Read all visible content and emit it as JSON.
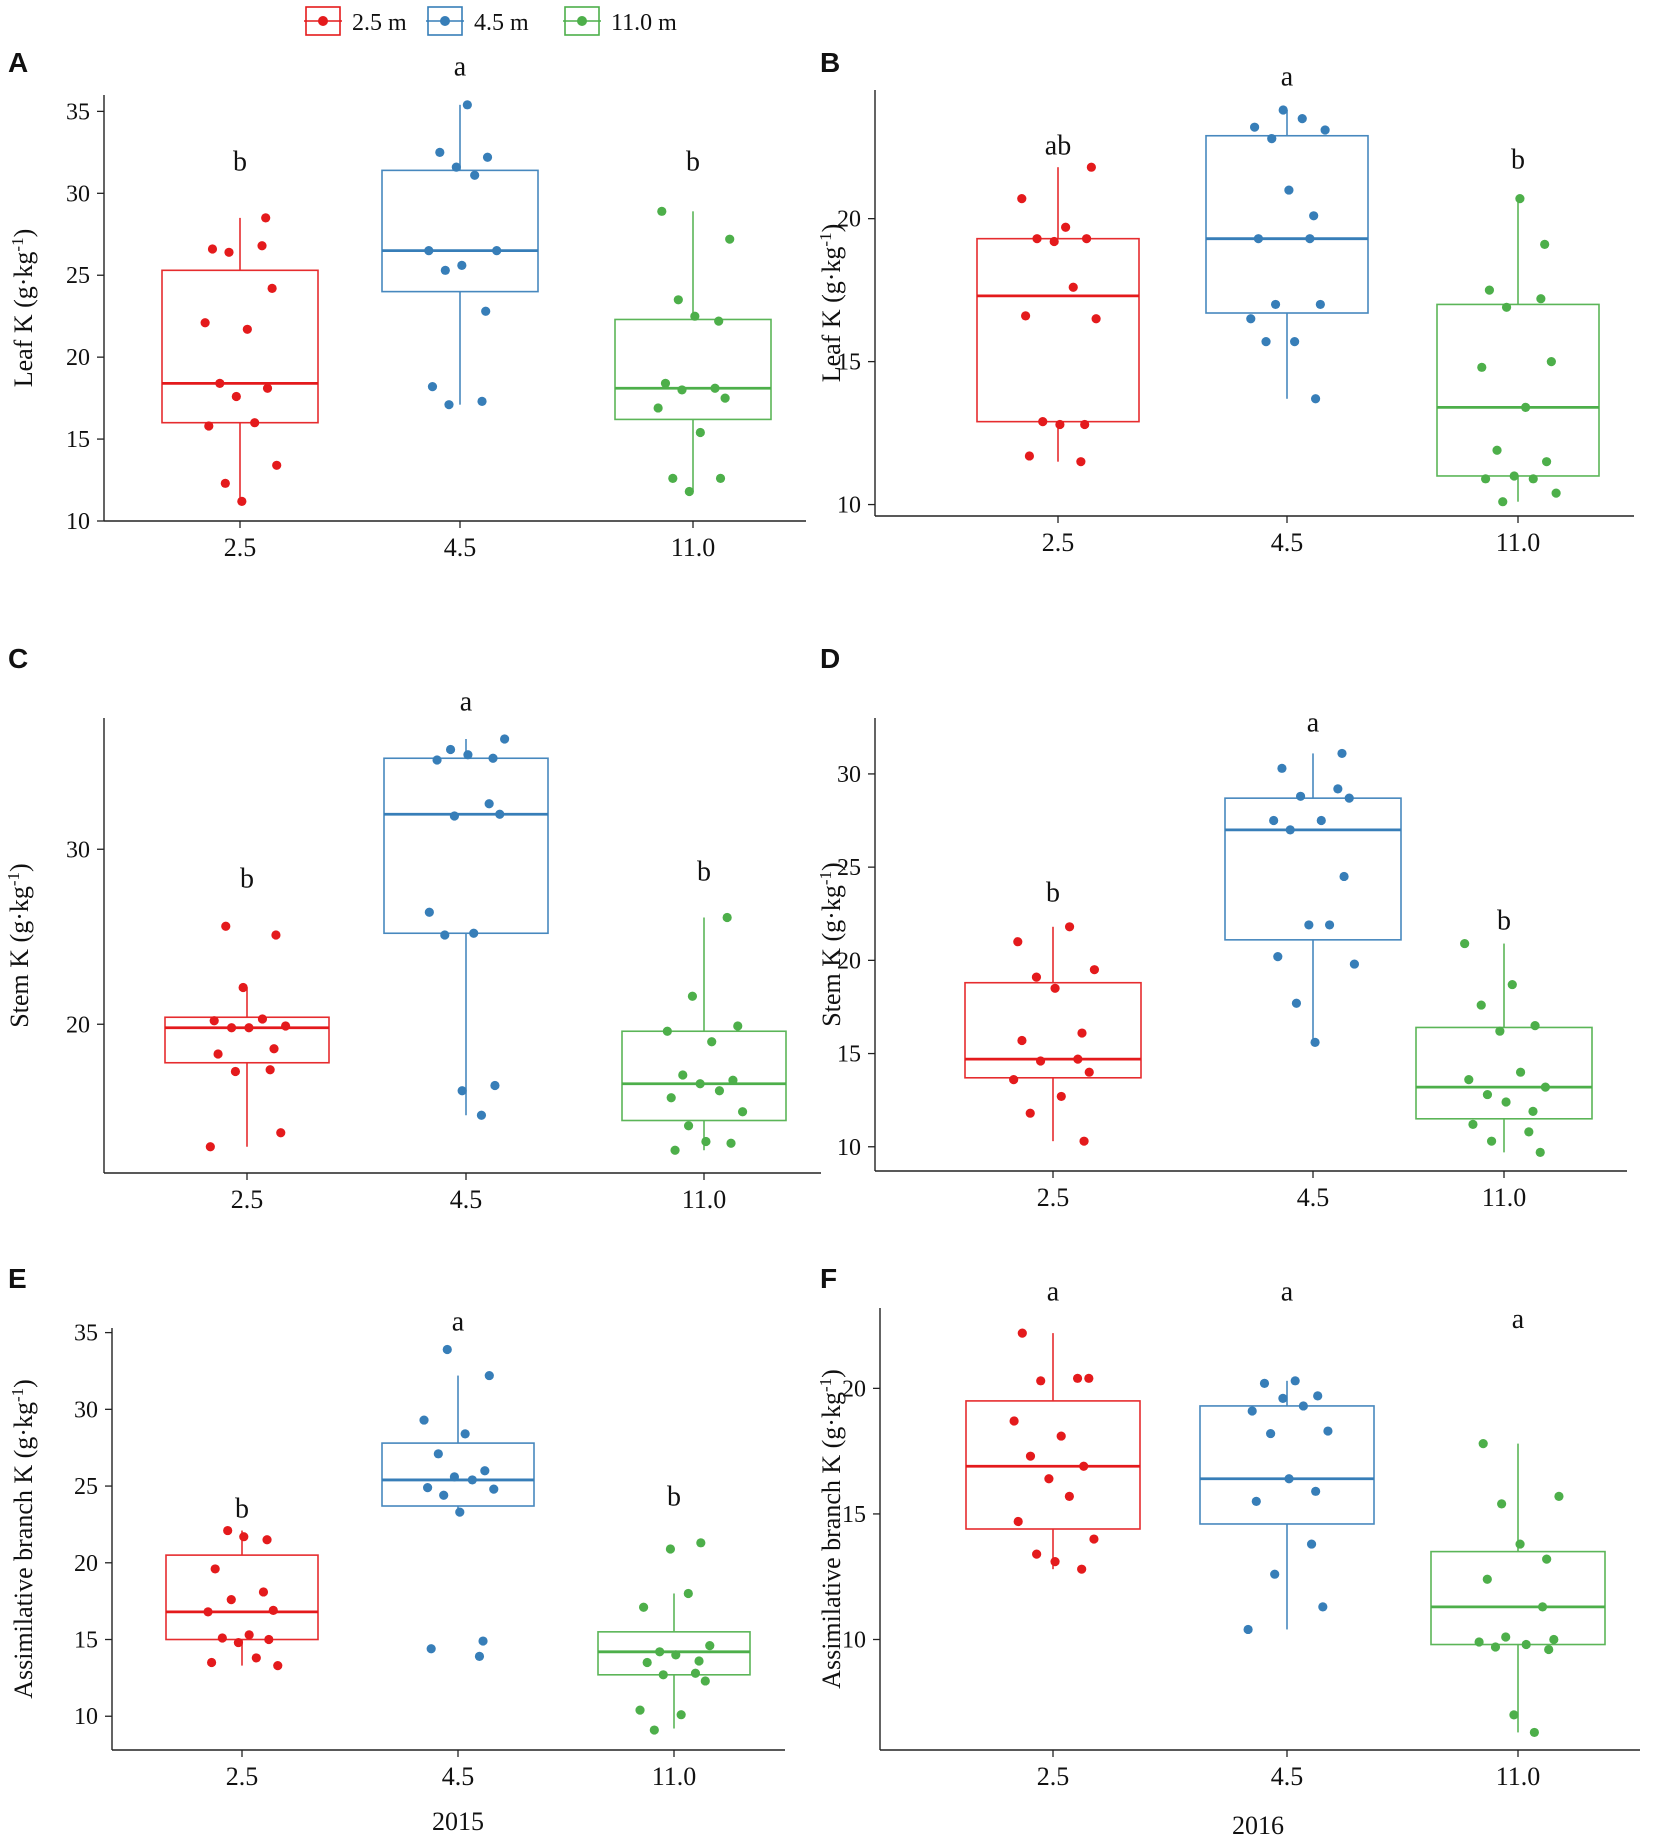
{
  "figure": {
    "legend": [
      {
        "label": "2.5 m",
        "color": "#e41a1c"
      },
      {
        "label": "4.5 m",
        "color": "#377eb8"
      },
      {
        "label": "11.0 m",
        "color": "#4daf4a"
      }
    ],
    "year_labels": {
      "left": "2015",
      "right": "2016"
    }
  },
  "chart_data": [
    {
      "type": "box",
      "panel": "A",
      "year": "2015",
      "ylabel": "Leaf K",
      "ylim": [
        10,
        36
      ],
      "yticks": [
        10,
        15,
        20,
        25,
        30,
        35
      ],
      "categories": [
        "2.5",
        "4.5",
        "11.0"
      ],
      "series": [
        {
          "name": "2.5 m",
          "color": "#e41a1c",
          "letter": "b",
          "letter_y": 32.0,
          "box": {
            "q1": 16.0,
            "median": 18.4,
            "q3": 25.3,
            "whisker_low": 11.2,
            "whisker_high": 28.5
          },
          "points": [
            26.6,
            26.8,
            26.4,
            24.2,
            22.1,
            21.7,
            18.4,
            18.1,
            17.6,
            16.0,
            15.8,
            13.4,
            12.3,
            11.2,
            28.5
          ]
        },
        {
          "name": "4.5 m",
          "color": "#377eb8",
          "letter": "a",
          "letter_y": 37.8,
          "box": {
            "q1": 24.0,
            "median": 26.5,
            "q3": 31.4,
            "whisker_low": 17.1,
            "whisker_high": 35.4
          },
          "points": [
            35.4,
            32.5,
            32.2,
            31.6,
            31.1,
            26.5,
            26.5,
            25.3,
            25.6,
            22.8,
            18.2,
            17.3,
            17.1
          ]
        },
        {
          "name": "11.0 m",
          "color": "#4daf4a",
          "letter": "b",
          "letter_y": 32.0,
          "box": {
            "q1": 16.2,
            "median": 18.1,
            "q3": 22.3,
            "whisker_low": 11.8,
            "whisker_high": 28.9
          },
          "points": [
            28.9,
            27.2,
            23.5,
            22.5,
            22.2,
            18.4,
            18.1,
            18.0,
            17.5,
            16.9,
            15.4,
            12.6,
            12.6,
            11.8
          ]
        }
      ]
    },
    {
      "type": "box",
      "panel": "B",
      "year": "2016",
      "ylabel": "Leaf K",
      "ylim": [
        9.6,
        24.5
      ],
      "yticks": [
        10,
        15,
        20
      ],
      "categories": [
        "2.5",
        "4.5",
        "11.0"
      ],
      "series": [
        {
          "name": "2.5 m",
          "color": "#e41a1c",
          "letter": "ab",
          "letter_y": 22.6,
          "box": {
            "q1": 12.9,
            "median": 17.3,
            "q3": 19.3,
            "whisker_low": 11.5,
            "whisker_high": 21.8
          },
          "points": [
            21.8,
            20.7,
            19.7,
            19.3,
            19.3,
            19.2,
            17.6,
            16.6,
            16.5,
            12.9,
            12.8,
            12.8,
            11.7,
            11.5
          ]
        },
        {
          "name": "4.5 m",
          "color": "#377eb8",
          "letter": "a",
          "letter_y": 25.0,
          "box": {
            "q1": 16.7,
            "median": 19.3,
            "q3": 22.9,
            "whisker_low": 13.7,
            "whisker_high": 23.8
          },
          "points": [
            23.8,
            23.5,
            23.2,
            23.1,
            22.8,
            21.0,
            20.1,
            19.3,
            19.3,
            17.0,
            17.0,
            16.5,
            15.7,
            15.7,
            13.7
          ]
        },
        {
          "name": "11.0 m",
          "color": "#4daf4a",
          "letter": "b",
          "letter_y": 22.1,
          "box": {
            "q1": 11.0,
            "median": 13.4,
            "q3": 17.0,
            "whisker_low": 10.1,
            "whisker_high": 20.7
          },
          "points": [
            20.7,
            19.1,
            17.5,
            17.2,
            16.9,
            15.0,
            14.8,
            13.4,
            11.9,
            11.5,
            11.0,
            10.9,
            10.9,
            10.4,
            10.1
          ]
        }
      ]
    },
    {
      "type": "box",
      "panel": "C",
      "year": "2015",
      "ylabel": "Stem K",
      "ylim": [
        11.5,
        37.5
      ],
      "yticks": [
        20,
        30
      ],
      "categories": [
        "2.5",
        "4.5",
        "11.0"
      ],
      "series": [
        {
          "name": "2.5 m",
          "color": "#e41a1c",
          "letter": "b",
          "letter_y": 28.4,
          "box": {
            "q1": 17.8,
            "median": 19.8,
            "q3": 20.4,
            "whisker_low": 13.0,
            "whisker_high": 22.1
          },
          "points": [
            25.6,
            25.1,
            22.1,
            20.3,
            20.2,
            19.9,
            19.8,
            19.8,
            18.6,
            18.3,
            17.4,
            17.3,
            13.8,
            13.0
          ]
        },
        {
          "name": "4.5 m",
          "color": "#377eb8",
          "letter": "a",
          "letter_y": 38.5,
          "box": {
            "q1": 25.2,
            "median": 32.0,
            "q3": 35.2,
            "whisker_low": 14.8,
            "whisker_high": 36.3
          },
          "points": [
            36.3,
            35.7,
            35.4,
            35.2,
            35.1,
            32.6,
            31.9,
            32.0,
            26.4,
            25.2,
            25.1,
            16.5,
            16.2,
            14.8
          ]
        },
        {
          "name": "11.0 m",
          "color": "#4daf4a",
          "letter": "b",
          "letter_y": 28.8,
          "box": {
            "q1": 14.5,
            "median": 16.6,
            "q3": 19.6,
            "whisker_low": 12.8,
            "whisker_high": 26.1
          },
          "points": [
            26.1,
            21.6,
            19.9,
            19.6,
            19.0,
            17.1,
            16.8,
            16.6,
            16.2,
            15.8,
            15.0,
            14.2,
            13.3,
            13.2,
            12.8
          ]
        }
      ]
    },
    {
      "type": "box",
      "panel": "D",
      "year": "2016",
      "ylabel": "Stem K",
      "ylim": [
        8.7,
        33
      ],
      "yticks": [
        10,
        15,
        20,
        25,
        30
      ],
      "categories": [
        "2.5",
        "4.5",
        "11.0"
      ],
      "series": [
        {
          "name": "2.5 m",
          "color": "#e41a1c",
          "letter": "b",
          "letter_y": 23.7,
          "box": {
            "q1": 13.7,
            "median": 14.7,
            "q3": 18.8,
            "whisker_low": 10.3,
            "whisker_high": 21.8
          },
          "points": [
            21.8,
            21.0,
            19.5,
            19.1,
            18.5,
            16.1,
            15.7,
            14.7,
            14.6,
            14.0,
            13.6,
            12.7,
            11.8,
            10.3
          ]
        },
        {
          "name": "4.5 m",
          "color": "#377eb8",
          "letter": "a",
          "letter_y": 32.8,
          "box": {
            "q1": 21.1,
            "median": 27.0,
            "q3": 28.7,
            "whisker_low": 15.6,
            "whisker_high": 31.1
          },
          "points": [
            31.1,
            30.3,
            29.2,
            28.8,
            28.7,
            27.5,
            27.5,
            27.0,
            24.5,
            21.9,
            21.9,
            20.2,
            19.8,
            17.7,
            15.6
          ]
        },
        {
          "name": "11.0 m",
          "color": "#4daf4a",
          "letter": "b",
          "letter_y": 22.2,
          "box": {
            "q1": 11.5,
            "median": 13.2,
            "q3": 16.4,
            "whisker_low": 9.7,
            "whisker_high": 20.9
          },
          "points": [
            20.9,
            18.7,
            17.6,
            16.5,
            16.2,
            14.0,
            13.6,
            13.2,
            12.8,
            12.4,
            11.9,
            11.2,
            10.8,
            10.3,
            9.7
          ]
        }
      ]
    },
    {
      "type": "box",
      "panel": "E",
      "year": "2015",
      "ylabel": "Assimilative branch K",
      "ylim": [
        7.8,
        35.3
      ],
      "yticks": [
        10,
        15,
        20,
        25,
        30,
        35
      ],
      "categories": [
        "2.5",
        "4.5",
        "11.0"
      ],
      "series": [
        {
          "name": "2.5 m",
          "color": "#e41a1c",
          "letter": "b",
          "letter_y": 23.6,
          "box": {
            "q1": 15.0,
            "median": 16.8,
            "q3": 20.5,
            "whisker_low": 13.3,
            "whisker_high": 22.1
          },
          "points": [
            22.1,
            21.7,
            21.5,
            19.6,
            18.1,
            17.6,
            16.9,
            16.8,
            15.3,
            15.1,
            15.0,
            14.8,
            13.8,
            13.5,
            13.3
          ]
        },
        {
          "name": "4.5 m",
          "color": "#377eb8",
          "letter": "a",
          "letter_y": 35.8,
          "box": {
            "q1": 23.7,
            "median": 25.4,
            "q3": 27.8,
            "whisker_low": 23.3,
            "whisker_high": 32.2
          },
          "points": [
            33.9,
            32.2,
            29.3,
            28.4,
            27.1,
            26.0,
            25.6,
            25.4,
            24.9,
            24.8,
            24.4,
            23.3,
            14.9,
            14.4,
            13.9
          ]
        },
        {
          "name": "11.0 m",
          "color": "#4daf4a",
          "letter": "b",
          "letter_y": 24.4,
          "box": {
            "q1": 12.7,
            "median": 14.2,
            "q3": 15.5,
            "whisker_low": 9.2,
            "whisker_high": 18.0
          },
          "points": [
            21.3,
            20.9,
            18.0,
            17.1,
            14.6,
            14.2,
            14.0,
            13.6,
            13.5,
            12.8,
            12.7,
            12.3,
            10.4,
            10.1,
            9.1
          ]
        }
      ]
    },
    {
      "type": "box",
      "panel": "F",
      "year": "2016",
      "ylabel": "Assimilative branch K",
      "ylim": [
        5.6,
        23.2
      ],
      "yticks": [
        10,
        15,
        20
      ],
      "categories": [
        "2.5",
        "4.5",
        "11.0"
      ],
      "series": [
        {
          "name": "2.5 m",
          "color": "#e41a1c",
          "letter": "a",
          "letter_y": 23.9,
          "box": {
            "q1": 14.4,
            "median": 16.9,
            "q3": 19.5,
            "whisker_low": 12.8,
            "whisker_high": 22.2
          },
          "points": [
            22.2,
            20.4,
            20.3,
            20.4,
            18.7,
            18.1,
            17.3,
            16.9,
            16.4,
            15.7,
            14.7,
            14.0,
            13.4,
            13.1,
            12.8
          ]
        },
        {
          "name": "4.5 m",
          "color": "#377eb8",
          "letter": "a",
          "letter_y": 23.9,
          "box": {
            "q1": 14.6,
            "median": 16.4,
            "q3": 19.3,
            "whisker_low": 10.4,
            "whisker_high": 20.3
          },
          "points": [
            20.3,
            20.2,
            19.7,
            19.6,
            19.3,
            19.1,
            18.3,
            18.2,
            16.4,
            15.9,
            15.5,
            13.8,
            12.6,
            11.3,
            10.4
          ]
        },
        {
          "name": "11.0 m",
          "color": "#4daf4a",
          "letter": "a",
          "letter_y": 22.8,
          "box": {
            "q1": 9.8,
            "median": 11.3,
            "q3": 13.5,
            "whisker_low": 6.3,
            "whisker_high": 17.8
          },
          "points": [
            17.8,
            15.7,
            15.4,
            13.8,
            13.2,
            12.4,
            11.3,
            10.1,
            10.0,
            9.9,
            9.8,
            9.7,
            9.6,
            7.0,
            6.3
          ]
        }
      ]
    }
  ]
}
